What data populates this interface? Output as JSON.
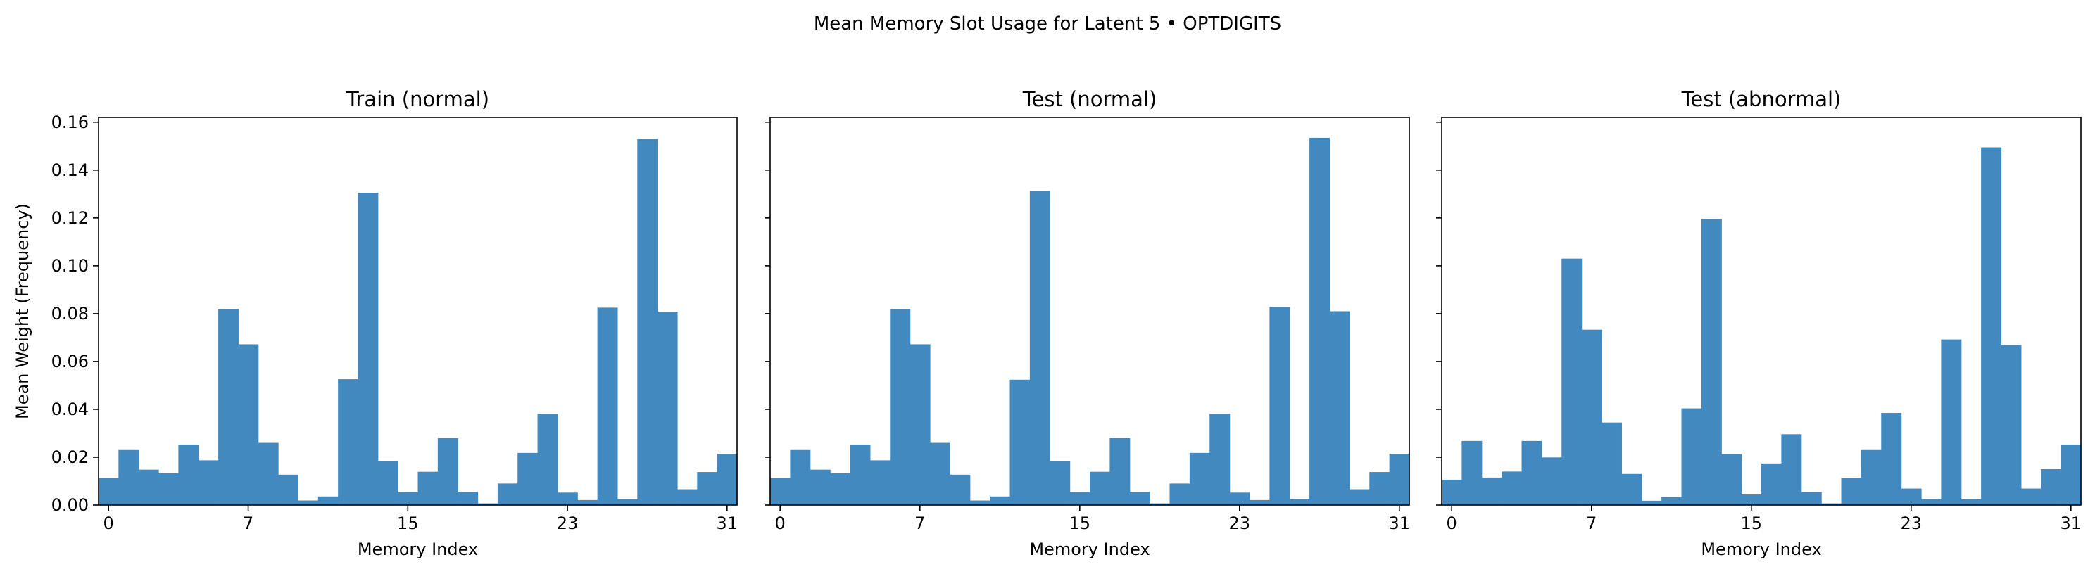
{
  "figure": {
    "suptitle": "Mean Memory Slot Usage for Latent 5 • OPTDIGITS"
  },
  "bar_color": "#4289c0",
  "chart_data": [
    {
      "type": "bar",
      "title": "Train (normal)",
      "xlabel": "Memory Index",
      "ylabel": "Mean Weight (Frequency)",
      "x": [
        0,
        1,
        2,
        3,
        4,
        5,
        6,
        7,
        8,
        9,
        10,
        11,
        12,
        13,
        14,
        15,
        16,
        17,
        18,
        19,
        20,
        21,
        22,
        23,
        24,
        25,
        26,
        27,
        28,
        29,
        30,
        31
      ],
      "values": [
        0.0112,
        0.023,
        0.0148,
        0.0133,
        0.0253,
        0.0187,
        0.082,
        0.0672,
        0.026,
        0.0127,
        0.0019,
        0.0036,
        0.0526,
        0.1305,
        0.0183,
        0.0053,
        0.0139,
        0.028,
        0.0055,
        0.0007,
        0.009,
        0.0218,
        0.0381,
        0.0052,
        0.0021,
        0.0825,
        0.0025,
        0.153,
        0.0808,
        0.0066,
        0.0138,
        0.0214
      ],
      "xticks": [
        "0",
        "7",
        "15",
        "23",
        "31"
      ],
      "yticks": [
        "0.00",
        "0.02",
        "0.04",
        "0.06",
        "0.08",
        "0.10",
        "0.12",
        "0.14",
        "0.16"
      ],
      "xlim": [
        -0.5,
        31.5
      ],
      "ylim": [
        0,
        0.162
      ]
    },
    {
      "type": "bar",
      "title": "Test (normal)",
      "xlabel": "Memory Index",
      "ylabel": "",
      "x": [
        0,
        1,
        2,
        3,
        4,
        5,
        6,
        7,
        8,
        9,
        10,
        11,
        12,
        13,
        14,
        15,
        16,
        17,
        18,
        19,
        20,
        21,
        22,
        23,
        24,
        25,
        26,
        27,
        28,
        29,
        30,
        31
      ],
      "values": [
        0.0112,
        0.023,
        0.0148,
        0.0133,
        0.0253,
        0.0187,
        0.082,
        0.0672,
        0.026,
        0.0127,
        0.0019,
        0.0036,
        0.0524,
        0.1312,
        0.0183,
        0.0053,
        0.0139,
        0.028,
        0.0055,
        0.0007,
        0.009,
        0.0218,
        0.0381,
        0.0052,
        0.0021,
        0.0828,
        0.0025,
        0.1535,
        0.081,
        0.0066,
        0.0138,
        0.0214
      ],
      "xticks": [
        "0",
        "7",
        "15",
        "23",
        "31"
      ],
      "yticks": [],
      "xlim": [
        -0.5,
        31.5
      ],
      "ylim": [
        0,
        0.162
      ]
    },
    {
      "type": "bar",
      "title": "Test (abnormal)",
      "xlabel": "Memory Index",
      "ylabel": "",
      "x": [
        0,
        1,
        2,
        3,
        4,
        5,
        6,
        7,
        8,
        9,
        10,
        11,
        12,
        13,
        14,
        15,
        16,
        17,
        18,
        19,
        20,
        21,
        22,
        23,
        24,
        25,
        26,
        27,
        28,
        29,
        30,
        31
      ],
      "values": [
        0.0106,
        0.0268,
        0.0115,
        0.014,
        0.0268,
        0.0199,
        0.103,
        0.0733,
        0.0345,
        0.013,
        0.0018,
        0.0033,
        0.0404,
        0.1195,
        0.0213,
        0.0044,
        0.0174,
        0.0296,
        0.0054,
        0.0007,
        0.0113,
        0.023,
        0.0385,
        0.0069,
        0.0025,
        0.0692,
        0.0024,
        0.1495,
        0.0669,
        0.0069,
        0.015,
        0.0253
      ],
      "xticks": [
        "0",
        "7",
        "15",
        "23",
        "31"
      ],
      "yticks": [],
      "xlim": [
        -0.5,
        31.5
      ],
      "ylim": [
        0,
        0.162
      ]
    }
  ]
}
